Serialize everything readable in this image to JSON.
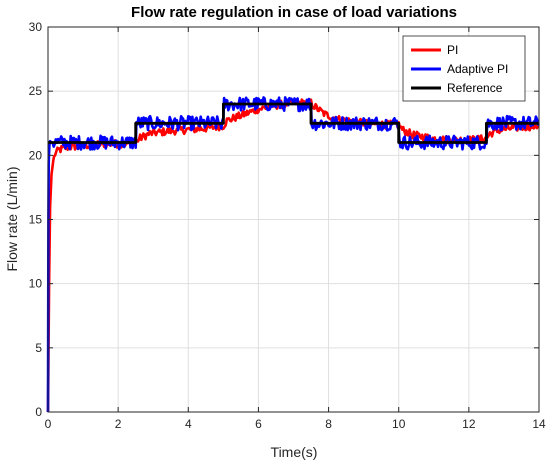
{
  "chart_data": {
    "type": "line",
    "title": "Flow rate regulation in case of load variations",
    "xlabel": "Time(s)",
    "ylabel": "Flow rate (L/min)",
    "xlim": [
      0,
      14
    ],
    "ylim": [
      0,
      30
    ],
    "xticks": [
      0,
      2,
      4,
      6,
      8,
      10,
      12,
      14
    ],
    "yticks": [
      0,
      5,
      10,
      15,
      20,
      25,
      30
    ],
    "grid": true,
    "legend": "top-right",
    "series": [
      {
        "name": "PI",
        "color": "#ff0000",
        "noise": 0.3,
        "x": [
          0,
          0.03,
          0.06,
          0.1,
          0.15,
          0.2,
          0.3,
          0.5,
          0.8,
          1.2,
          1.6,
          2.0,
          2.5,
          2.6,
          2.9,
          3.5,
          4.0,
          4.5,
          5.0,
          5.1,
          5.5,
          6.0,
          6.5,
          7.0,
          7.5,
          7.6,
          7.9,
          8.3,
          9.0,
          9.5,
          10.0,
          10.1,
          10.4,
          11.0,
          11.5,
          12.0,
          12.5,
          12.6,
          12.9,
          13.5,
          14.0
        ],
        "y": [
          0,
          10,
          16,
          18.5,
          19.6,
          20.1,
          20.4,
          20.6,
          20.7,
          20.8,
          20.9,
          20.9,
          21.0,
          21.3,
          21.7,
          21.9,
          22.0,
          22.1,
          22.3,
          22.7,
          23.1,
          23.6,
          23.9,
          24.1,
          24.1,
          23.8,
          23.2,
          22.8,
          22.5,
          22.4,
          22.4,
          22.0,
          21.6,
          21.3,
          21.2,
          21.2,
          21.3,
          21.7,
          22.0,
          22.2,
          22.3
        ]
      },
      {
        "name": "Adaptive PI",
        "color": "#0000ff",
        "noise": 0.55,
        "x": [
          0,
          0.01,
          0.02,
          0.04,
          0.06,
          0.1,
          0.5,
          1.0,
          1.5,
          2.0,
          2.5,
          2.52,
          3.0,
          3.5,
          4.0,
          4.5,
          5.0,
          5.02,
          5.5,
          6.0,
          6.5,
          7.0,
          7.5,
          7.52,
          8.0,
          9.0,
          10.0,
          10.02,
          10.5,
          11.0,
          12.0,
          12.5,
          12.52,
          13.0,
          13.5,
          14.0
        ],
        "y": [
          0,
          15,
          19.5,
          20.8,
          21.1,
          21.0,
          21.0,
          21.0,
          21.0,
          21.0,
          21.0,
          22.5,
          22.5,
          22.5,
          22.5,
          22.5,
          22.5,
          24.0,
          24.0,
          24.0,
          24.0,
          24.0,
          24.0,
          22.5,
          22.5,
          22.5,
          22.5,
          21.0,
          21.0,
          21.0,
          21.0,
          21.0,
          22.5,
          22.5,
          22.5,
          22.5
        ]
      },
      {
        "name": "Reference",
        "color": "#000000",
        "noise": 0,
        "x": [
          0,
          2.5,
          2.5,
          5.0,
          5.0,
          7.5,
          7.5,
          10.0,
          10.0,
          12.5,
          12.5,
          14.0
        ],
        "y": [
          21,
          21,
          22.5,
          22.5,
          24,
          24,
          22.5,
          22.5,
          21,
          21,
          22.5,
          22.5
        ]
      }
    ]
  }
}
